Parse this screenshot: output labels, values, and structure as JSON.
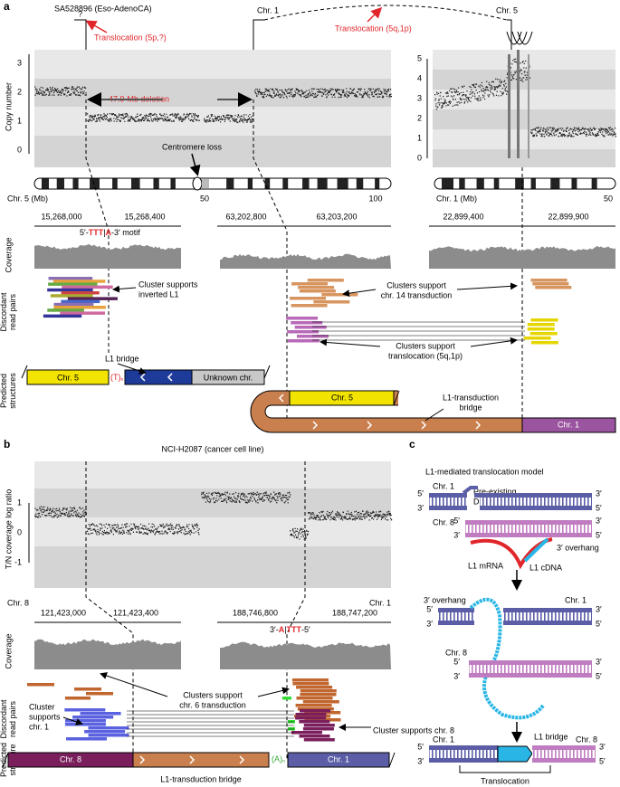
{
  "panel_a": {
    "label": "a",
    "title": "SA528896 (Eso-AdenoCA)",
    "unknown_mark": "?",
    "translocation_left": "Translocation (5p,?)",
    "chr1_top": "Chr. 1",
    "translocation_right": "Translocation (5q,1p)",
    "chr5_top": "Chr. 5",
    "y_axis_label": "Copy number",
    "left_yticks": [
      3,
      2,
      1,
      0
    ],
    "right_yticks": [
      5,
      4,
      3,
      2,
      1,
      0
    ],
    "deletion": "47.9-Mb deletion",
    "centromere": "Centromere loss",
    "chr5_axis": {
      "label": "Chr. 5 (Mb)",
      "ticks": [
        50,
        100
      ]
    },
    "chr1_axis": {
      "label": "Chr. 1 (Mb)",
      "ticks": [
        50
      ]
    },
    "coordinates": [
      "15,268,000",
      "15,268,400",
      "63,202,800",
      "63,203,200",
      "22,899,400",
      "22,899,900"
    ],
    "motif": {
      "prefix": "5′-",
      "t": "TTT",
      "a": "A",
      "suffix": "-3′ motif"
    },
    "coverage_label": "Coverage",
    "reads_label": [
      "Discordant",
      "read pairs"
    ],
    "structures_label": [
      "Predicted",
      "structures"
    ],
    "annotation_inverted": [
      "Cluster supports",
      "inverted L1"
    ],
    "annotation_transduction": [
      "Clusters support",
      "chr. 14 transduction"
    ],
    "annotation_translocation": [
      "Clusters support",
      "translocation (5q,1p)"
    ],
    "structure_left": {
      "chr5": "Chr. 5",
      "poly_t": "(T)",
      "poly_sub": "n",
      "bridge": "L1 bridge",
      "unknown": "Unknown chr."
    },
    "structure_right": {
      "chr5": "Chr. 5",
      "bridge": [
        "L1-transduction",
        "bridge"
      ],
      "chr1": "Chr. 1"
    }
  },
  "panel_b": {
    "label": "b",
    "title": "NCI-H2087 (cancer cell line)",
    "y_axis_label": "T/N coverage log ratio",
    "yticks": [
      1,
      0,
      -1
    ],
    "chr_left": "Chr. 8",
    "chr_right": "Chr. 1",
    "coordinates": [
      "121,423,000",
      "121,423,400",
      "188,746,800",
      "188,747,200"
    ],
    "motif": {
      "prefix": "3′-",
      "a": "A",
      "t": "TTT",
      "suffix": "-5′"
    },
    "coverage_label": "Coverage",
    "reads_label": [
      "Discordant",
      "read pairs"
    ],
    "annotation_transduction": [
      "Clusters support",
      "chr. 6 transduction"
    ],
    "annotation_chr1": [
      "Cluster",
      "supports",
      "chr. 1"
    ],
    "annotation_chr8": "Cluster supports chr. 8",
    "structure_label": [
      "Predicted",
      "structure"
    ],
    "structure": {
      "chr8": "Chr. 8",
      "poly_a": "(A)",
      "poly_sub": "n",
      "chr1": "Chr. 1",
      "bridge": "L1-transduction bridge"
    }
  },
  "panel_c": {
    "label": "c",
    "title": "L1-mediated translocation model",
    "step1": {
      "chr1": "Chr. 1",
      "dsb": [
        "Pre-existing",
        "DSB"
      ],
      "chr8": "Chr. 8",
      "overhang": "3′ overhang",
      "mrna": "L1 mRNA",
      "cdna": "L1 cDNA"
    },
    "step2": {
      "overhang": "3′ overhang",
      "chr1": "Chr. 1",
      "chr8": "Chr. 8"
    },
    "step3": {
      "chr1": "Chr. 1",
      "bridge": "L1 bridge",
      "chr8": "Chr. 8",
      "result": "Translocation"
    },
    "strand_ends": [
      "5′",
      "3′",
      "3′",
      "5′",
      "5′",
      "3′",
      "3′",
      "5′",
      "5′",
      "3′",
      "3′",
      "5′",
      "5′",
      "3′",
      "3′",
      "5′",
      "5′",
      "3′",
      "3′",
      "5′"
    ]
  }
}
